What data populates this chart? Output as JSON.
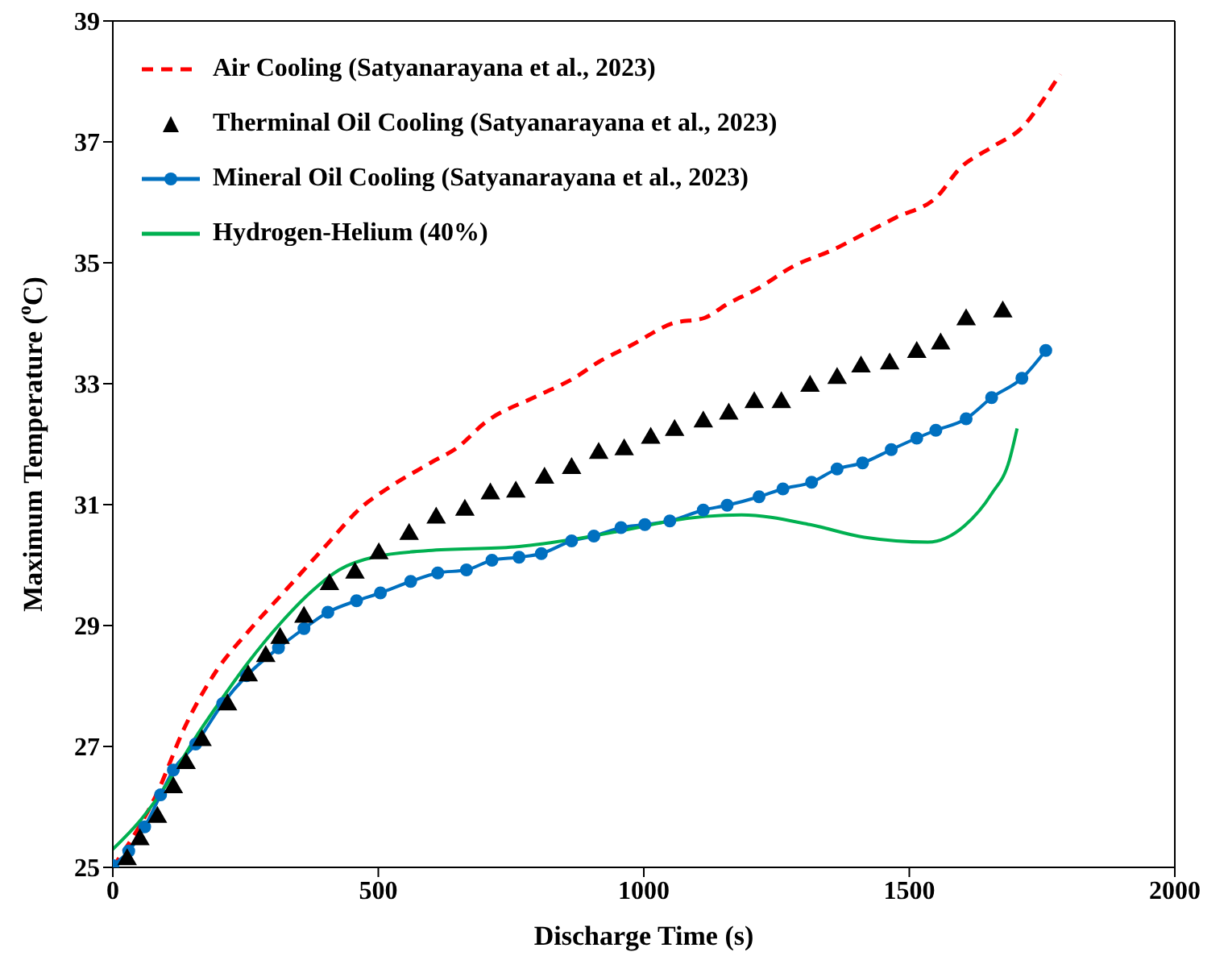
{
  "chart_data": {
    "type": "line",
    "xlabel": "Discharge Time (s)",
    "ylabel": "Maximum Temperature ($^{o}$C)",
    "xlim": [
      0,
      2000
    ],
    "xticks": [
      0,
      500,
      1000,
      1500,
      2000
    ],
    "ylim": [
      25,
      39
    ],
    "yticks": [
      25,
      27,
      29,
      31,
      33,
      35,
      37,
      39
    ],
    "legend": "top left",
    "series": [
      {
        "name": "Air Cooling (Satyanarayana et al., 2023)",
        "color": "#ff0000",
        "line_style": "dashed",
        "marker": "none",
        "x": [
          0,
          84,
          135,
          195,
          255,
          324,
          396,
          474,
          516,
          600,
          650,
          700,
          800,
          870,
          915,
          975,
          1055,
          1115,
          1154,
          1214,
          1283,
          1355,
          1415,
          1475,
          1553,
          1595,
          1655,
          1715,
          1754,
          1784
        ],
        "values": [
          25.0,
          26.24,
          27.31,
          28.25,
          28.9,
          29.57,
          30.27,
          31.0,
          31.26,
          31.7,
          31.95,
          32.35,
          32.8,
          33.1,
          33.36,
          33.63,
          34.0,
          34.09,
          34.3,
          34.57,
          34.95,
          35.21,
          35.48,
          35.75,
          36.1,
          36.56,
          36.91,
          37.26,
          37.72,
          38.12
        ]
      },
      {
        "name": "Therminal Oil Cooling (Satyanarayana et al., 2023)",
        "type": "scatter",
        "color": "#000000",
        "marker": "triangle",
        "x": [
          27,
          51,
          84,
          114,
          138,
          168,
          216,
          255,
          288,
          315,
          360,
          408,
          456,
          501,
          558,
          609,
          663,
          711,
          759,
          813,
          864,
          915,
          963,
          1013,
          1058,
          1112,
          1160,
          1208,
          1259,
          1313,
          1364,
          1409,
          1463,
          1514,
          1559,
          1607,
          1676
        ],
        "values": [
          25.13,
          25.46,
          25.83,
          26.32,
          26.72,
          27.1,
          27.69,
          28.17,
          28.49,
          28.79,
          29.14,
          29.68,
          29.87,
          30.19,
          30.51,
          30.78,
          30.91,
          31.18,
          31.21,
          31.44,
          31.6,
          31.85,
          31.91,
          32.1,
          32.23,
          32.37,
          32.5,
          32.69,
          32.69,
          32.96,
          33.09,
          33.28,
          33.33,
          33.52,
          33.66,
          34.06,
          34.19
        ]
      },
      {
        "name": "Mineral Oil Cooling (Satyanarayana et al., 2023)",
        "color": "#0070c0",
        "line_style": "solid",
        "marker": "circle",
        "x": [
          0,
          30,
          60,
          90,
          114,
          156,
          207,
          252,
          312,
          360,
          405,
          459,
          504,
          561,
          612,
          666,
          714,
          765,
          807,
          864,
          906,
          957,
          1002,
          1049,
          1112,
          1157,
          1217,
          1262,
          1316,
          1364,
          1412,
          1466,
          1514,
          1550,
          1607,
          1655,
          1712,
          1757
        ],
        "values": [
          25.03,
          25.27,
          25.67,
          26.2,
          26.61,
          27.04,
          27.71,
          28.17,
          28.63,
          28.95,
          29.22,
          29.41,
          29.54,
          29.73,
          29.87,
          29.92,
          30.08,
          30.13,
          30.19,
          30.4,
          30.48,
          30.62,
          30.67,
          30.73,
          30.91,
          30.99,
          31.13,
          31.26,
          31.37,
          31.59,
          31.69,
          31.91,
          32.1,
          32.23,
          32.42,
          32.77,
          33.09,
          33.55
        ]
      },
      {
        "name": "Hydrogen-Helium (40%)",
        "color": "#00b050",
        "line_style": "solid",
        "marker": "none",
        "x": [
          0,
          54,
          105,
          156,
          204,
          255,
          315,
          375,
          426,
          495,
          594,
          756,
          855,
          1005,
          1049,
          1184,
          1313,
          1415,
          1535,
          1604,
          1655,
          1688,
          1703
        ],
        "values": [
          25.3,
          25.8,
          26.42,
          27.15,
          27.77,
          28.39,
          29.03,
          29.57,
          29.92,
          30.14,
          30.24,
          30.3,
          30.41,
          30.65,
          30.73,
          30.83,
          30.67,
          30.46,
          30.38,
          30.65,
          31.18,
          31.72,
          32.26
        ]
      }
    ]
  }
}
